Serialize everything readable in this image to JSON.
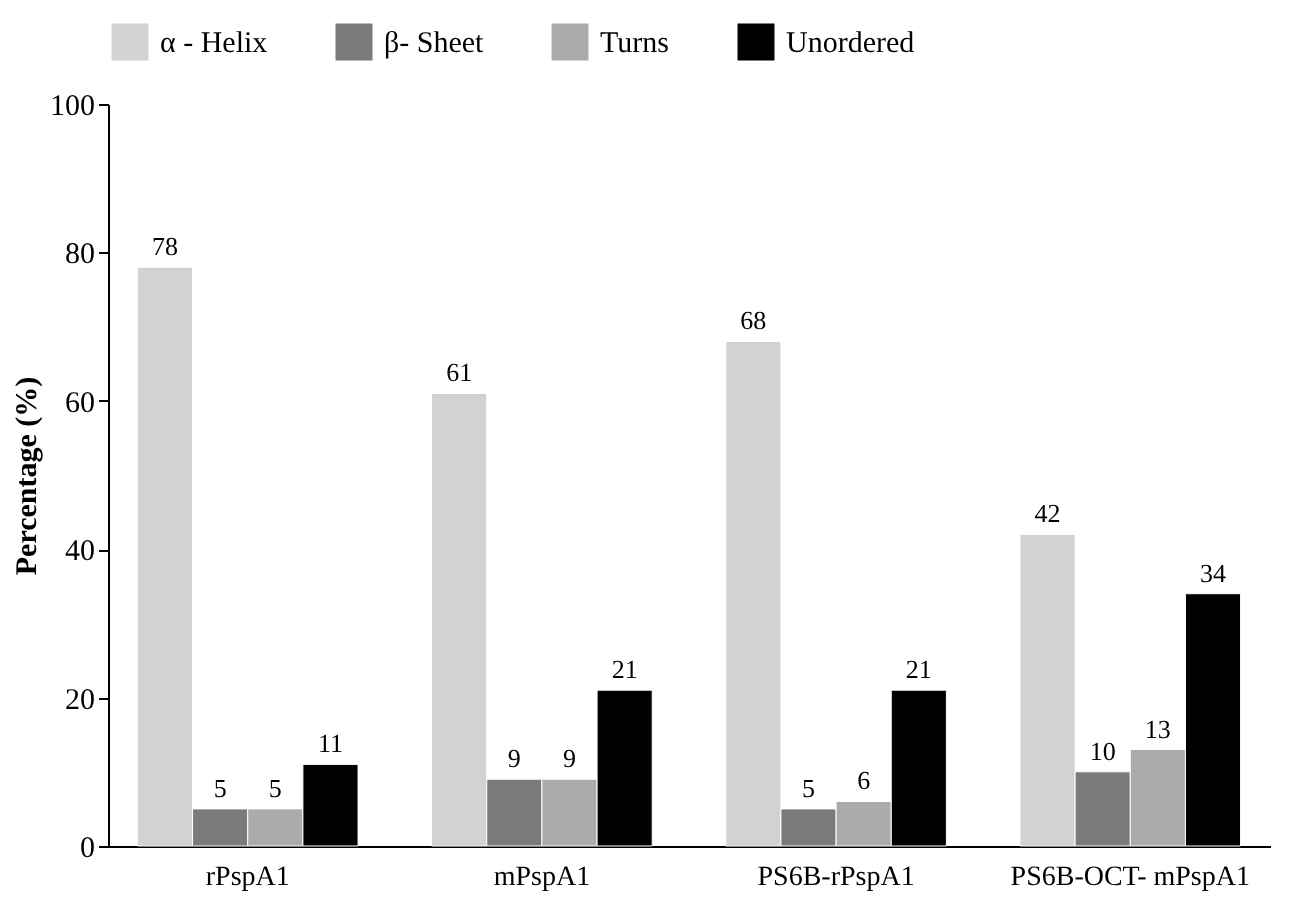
{
  "chart_data": {
    "type": "bar",
    "ylabel": "Percentage (%)",
    "categories": [
      "rPspA1",
      "mPspA1",
      "PS6B-rPspA1",
      "PS6B-OCT- mPspA1"
    ],
    "series": [
      {
        "name": "α - Helix",
        "color": "#d2d2d2",
        "values": [
          78,
          61,
          68,
          42
        ]
      },
      {
        "name": "β- Sheet",
        "color": "#7a7a7a",
        "values": [
          5,
          9,
          5,
          10
        ]
      },
      {
        "name": "Turns",
        "color": "#ababab",
        "values": [
          5,
          9,
          6,
          13
        ]
      },
      {
        "name": "Unordered",
        "color": "#000000",
        "values": [
          11,
          21,
          21,
          34
        ]
      }
    ],
    "ylim": [
      0,
      100
    ],
    "yticks": [
      0,
      20,
      40,
      60,
      80,
      100
    ],
    "grid": false,
    "legend": "top",
    "data_labels": true
  }
}
